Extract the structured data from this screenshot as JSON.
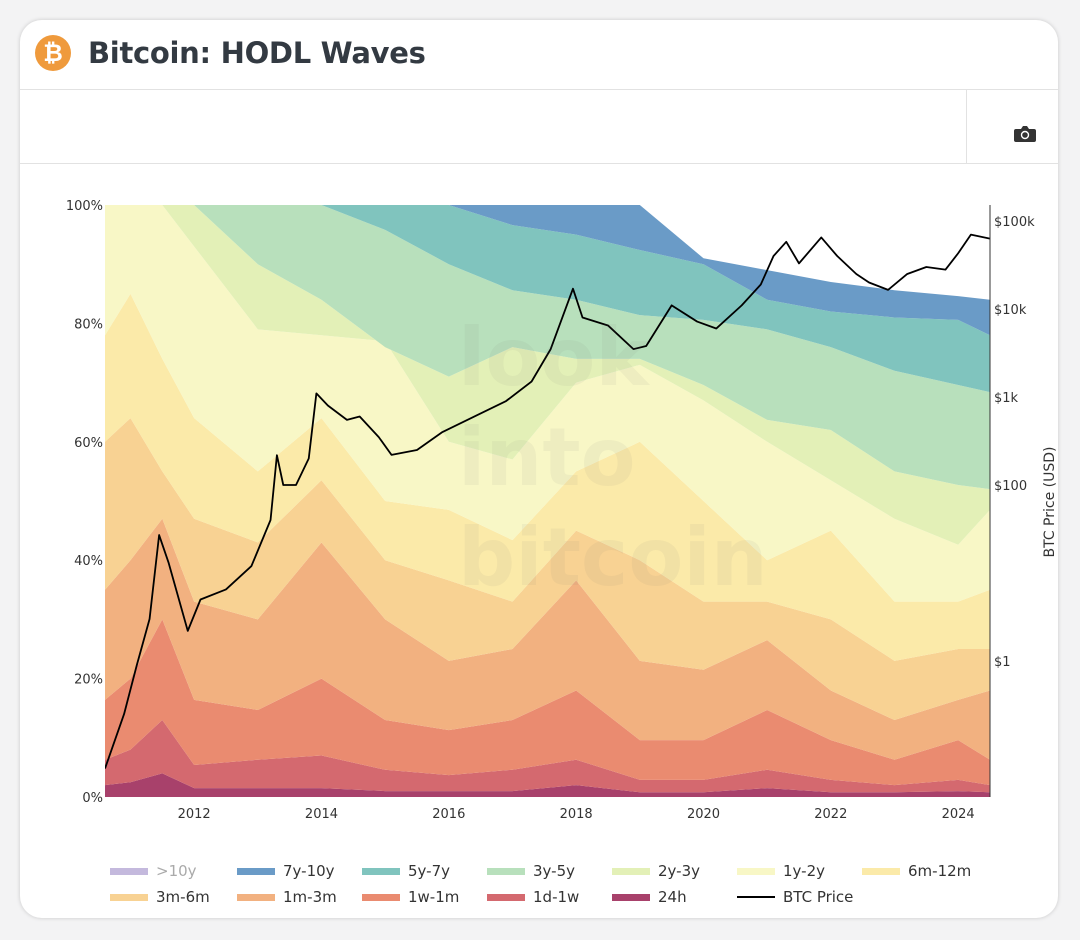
{
  "header": {
    "title": "Bitcoin: HODL Waves",
    "logo_symbol": "₿"
  },
  "toolbar": {
    "camera_icon": "camera-icon"
  },
  "watermark": [
    "look",
    "into",
    "bitcoin"
  ],
  "chart_data": {
    "type": "area",
    "stacked": true,
    "title": "Bitcoin: HODL Waves",
    "xlabel": "",
    "ylabel": "",
    "y2label": "BTC Price (USD)",
    "xlim": [
      2010.6,
      2024.5
    ],
    "ylim": [
      0,
      100
    ],
    "y2_scale": "log",
    "y2lim": [
      0.06,
      200000
    ],
    "x_ticks": [
      "2012",
      "2014",
      "2016",
      "2018",
      "2020",
      "2022",
      "2024"
    ],
    "x_tick_values": [
      2012,
      2014,
      2016,
      2018,
      2020,
      2022,
      2024
    ],
    "y_ticks": [
      "0%",
      "20%",
      "40%",
      "60%",
      "80%",
      "100%"
    ],
    "y_tick_values": [
      0,
      20,
      40,
      60,
      80,
      100
    ],
    "y2_ticks": [
      "$1",
      "$100",
      "$1k",
      "$10k",
      "$100k"
    ],
    "y2_tick_values": [
      1,
      100,
      1000,
      10000,
      100000
    ],
    "x": [
      2010.6,
      2011,
      2011.5,
      2012,
      2013,
      2014,
      2015,
      2016,
      2017,
      2018,
      2019,
      2020,
      2021,
      2022,
      2023,
      2024,
      2024.5
    ],
    "value_kind": "cumulative top of each stacked band, percent of supply",
    "series": [
      {
        "name": "24h",
        "color": "#a8416b",
        "visible": true,
        "stacked_top_pct": [
          2,
          2.5,
          4,
          1.5,
          1.5,
          1.5,
          1,
          1,
          1,
          2,
          0.8,
          0.8,
          1.5,
          0.8,
          0.8,
          1,
          0.8
        ]
      },
      {
        "name": "1d-1w",
        "color": "#d4696f",
        "visible": true,
        "stacked_top_pct": [
          6.3,
          8,
          13,
          5.4,
          6.3,
          7,
          4.6,
          3.7,
          4.6,
          6.3,
          2.9,
          2.9,
          4.6,
          2.9,
          2,
          2.9,
          2
        ]
      },
      {
        "name": "1w-1m",
        "color": "#ea8b70",
        "visible": true,
        "stacked_top_pct": [
          16.4,
          20,
          30,
          16.4,
          14.7,
          20,
          13,
          11.3,
          13,
          18,
          9.6,
          9.6,
          14.7,
          9.6,
          6.3,
          9.6,
          6.3
        ]
      },
      {
        "name": "1m-3m",
        "color": "#f2b180",
        "visible": true,
        "stacked_top_pct": [
          35,
          40,
          47,
          33,
          30,
          43,
          30,
          23,
          25,
          36.6,
          23,
          21.5,
          26.5,
          18,
          13,
          16.4,
          18
        ]
      },
      {
        "name": "3m-6m",
        "color": "#f8d293",
        "visible": true,
        "stacked_top_pct": [
          60,
          64,
          55,
          47,
          43,
          53.5,
          40,
          36.6,
          33,
          45,
          40,
          33,
          33,
          30,
          23,
          25,
          25
        ]
      },
      {
        "name": "6m-12m",
        "color": "#fbeaa9",
        "visible": true,
        "stacked_top_pct": [
          78,
          85,
          74,
          64,
          55,
          64,
          50,
          48.5,
          43.4,
          55,
          60,
          50,
          40,
          45,
          33,
          33,
          35
        ]
      },
      {
        "name": "1y-2y",
        "color": "#f8f7c6",
        "visible": true,
        "stacked_top_pct": [
          100,
          100,
          100,
          93,
          79,
          78,
          77,
          60,
          57,
          70,
          73,
          67,
          60,
          53.5,
          47,
          42.6,
          48.5
        ]
      },
      {
        "name": "2y-3y",
        "color": "#e3f0b7",
        "visible": true,
        "stacked_top_pct": [
          100,
          100,
          100,
          100,
          90,
          84,
          76,
          71,
          76,
          74,
          74,
          69.6,
          63.7,
          62,
          55,
          52.7,
          52
        ]
      },
      {
        "name": "3y-5y",
        "color": "#b8e0bc",
        "visible": true,
        "stacked_top_pct": [
          100,
          100,
          100,
          100,
          100,
          100,
          95.8,
          90,
          85.6,
          84,
          81.4,
          80.6,
          79,
          76,
          72,
          69.6,
          68.4
        ]
      },
      {
        "name": "5y-7y",
        "color": "#80c4be",
        "visible": true,
        "stacked_top_pct": [
          100,
          100,
          100,
          100,
          100,
          100,
          100,
          100,
          96.6,
          95,
          92.4,
          90,
          84,
          82,
          81,
          80.6,
          78
        ]
      },
      {
        "name": "7y-10y",
        "color": "#6a9bc7",
        "visible": true,
        "stacked_top_pct": [
          100,
          100,
          100,
          100,
          100,
          100,
          100,
          100,
          100,
          100,
          100,
          91,
          89,
          87,
          85.6,
          84.6,
          84
        ]
      },
      {
        "name": ">10y",
        "color": "#c4b9dd",
        "visible": false,
        "stacked_top_pct": [
          100,
          100,
          100,
          100,
          100,
          100,
          100,
          100,
          100,
          100,
          100,
          100,
          100,
          100,
          100,
          100,
          100
        ]
      }
    ],
    "price_series": {
      "name": "BTC Price",
      "color": "#000000",
      "x": [
        2010.6,
        2010.9,
        2011.1,
        2011.3,
        2011.45,
        2011.6,
        2011.9,
        2012.1,
        2012.5,
        2012.9,
        2013.2,
        2013.3,
        2013.4,
        2013.6,
        2013.8,
        2013.92,
        2014.1,
        2014.4,
        2014.6,
        2014.9,
        2015.1,
        2015.5,
        2015.9,
        2016.5,
        2016.9,
        2017.3,
        2017.6,
        2017.95,
        2018.1,
        2018.5,
        2018.9,
        2019.1,
        2019.5,
        2019.9,
        2020.2,
        2020.6,
        2020.9,
        2021.1,
        2021.3,
        2021.5,
        2021.85,
        2022.1,
        2022.4,
        2022.6,
        2022.9,
        2023.2,
        2023.5,
        2023.8,
        2024.0,
        2024.2,
        2024.5
      ],
      "y": [
        0.06,
        0.25,
        0.9,
        3,
        27,
        13,
        2.2,
        5,
        6.5,
        12,
        40,
        218,
        100,
        100,
        200,
        1100,
        800,
        550,
        600,
        350,
        220,
        250,
        400,
        650,
        900,
        1500,
        3500,
        17000,
        8000,
        6500,
        3500,
        3800,
        11000,
        7200,
        6000,
        11000,
        19000,
        40000,
        58000,
        33000,
        65000,
        40000,
        25000,
        20000,
        16500,
        25000,
        30000,
        28000,
        43000,
        70000,
        63000
      ]
    },
    "legend": [
      ">10y",
      "7y-10y",
      "5y-7y",
      "3y-5y",
      "2y-3y",
      "1y-2y",
      "6m-12m",
      "3m-6m",
      "1m-3m",
      "1w-1m",
      "1d-1w",
      "24h",
      "BTC Price"
    ],
    "legend_position": "bottom"
  }
}
